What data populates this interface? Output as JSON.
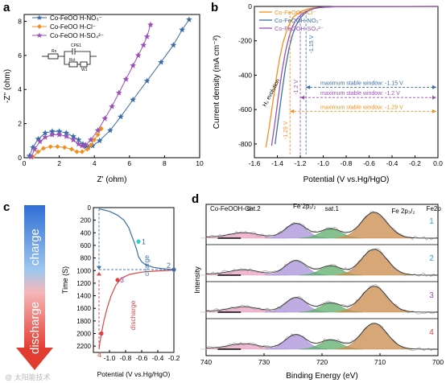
{
  "figure": {
    "watermarks": [
      "@ 太阳能技术"
    ]
  },
  "chart_data": [
    {
      "panel": "a",
      "type": "scatter",
      "xlabel": "Z' (ohm)",
      "ylabel": "-Z'' (ohm)",
      "xlim": [
        0,
        10
      ],
      "ylim": [
        0,
        8.4
      ],
      "xticks": [
        0,
        2,
        4,
        6,
        8,
        10
      ],
      "yticks": [
        0,
        2,
        4,
        6,
        8
      ],
      "legend_position": "top-left",
      "circuit_labels": [
        "Rs",
        "CPE1",
        "Rct",
        "W1"
      ],
      "series": [
        {
          "name": "Co-FeOO H-NO₃⁻",
          "color": "#3a6ea5",
          "marker": "star",
          "x": [
            0.3,
            0.5,
            0.8,
            1.2,
            1.6,
            2.0,
            2.4,
            2.8,
            3.1,
            3.35,
            3.5,
            3.65,
            3.9,
            4.3,
            4.9,
            5.5,
            6.2,
            7.0,
            7.8,
            8.5,
            9.0,
            9.4
          ],
          "y": [
            0.1,
            0.6,
            1.1,
            1.45,
            1.55,
            1.55,
            1.45,
            1.25,
            1.05,
            0.8,
            0.65,
            0.6,
            0.7,
            1.0,
            1.6,
            2.4,
            3.4,
            4.5,
            5.6,
            6.6,
            7.5,
            8.1
          ]
        },
        {
          "name": "Co-FeOO H-Cl⁻",
          "color": "#f0901e",
          "marker": "diamond",
          "x": [
            0.5,
            0.8,
            1.1,
            1.5,
            1.9,
            2.3,
            2.7,
            3.0,
            3.3,
            3.6,
            3.8,
            4.0,
            4.2,
            4.4
          ],
          "y": [
            0.05,
            0.35,
            0.55,
            0.65,
            0.65,
            0.6,
            0.5,
            0.35,
            0.35,
            0.5,
            0.75,
            1.05,
            1.35,
            1.7
          ]
        },
        {
          "name": "Co-FeOO H-SO₄²⁻",
          "color": "#9b4fb8",
          "marker": "star",
          "x": [
            0.4,
            0.6,
            0.9,
            1.2,
            1.6,
            2.0,
            2.4,
            2.8,
            3.1,
            3.3,
            3.5,
            3.8,
            4.2,
            4.6,
            5.0,
            5.4,
            5.8,
            6.2,
            6.5,
            6.8,
            7.0,
            7.2
          ],
          "y": [
            0.05,
            0.5,
            0.95,
            1.2,
            1.35,
            1.35,
            1.25,
            1.05,
            0.8,
            0.7,
            0.75,
            1.05,
            1.6,
            2.3,
            3.0,
            3.8,
            4.6,
            5.4,
            6.0,
            6.6,
            7.1,
            7.8
          ]
        }
      ]
    },
    {
      "panel": "b",
      "type": "line",
      "xlabel": "Potential (V vs.Hg/HgO)",
      "ylabel": "Current density (mA cm⁻²)",
      "xlim": [
        -1.6,
        0.0
      ],
      "ylim": [
        -880,
        0
      ],
      "xticks": [
        -1.6,
        -1.4,
        -1.2,
        -1.0,
        -0.8,
        -0.6,
        -0.4,
        -0.2,
        0.0
      ],
      "yticks": [
        0,
        -200,
        -400,
        -600,
        -800
      ],
      "legend_position": "top-left",
      "series": [
        {
          "name": "Co-FeOOH-Cl⁻",
          "color": "#f0901e",
          "x": [
            -1.5,
            -1.47,
            -1.44,
            -1.41,
            -1.38,
            -1.35,
            -1.32,
            -1.29,
            -1.26,
            -1.22,
            -1.18,
            -1.14,
            -1.1,
            -1.05,
            -1.0,
            -0.9,
            0.0
          ],
          "y": [
            -820,
            -700,
            -560,
            -420,
            -300,
            -210,
            -145,
            -95,
            -62,
            -40,
            -26,
            -16,
            -10,
            -6,
            -4,
            -2,
            0
          ]
        },
        {
          "name": "Co-FeOOH-NO₃⁻",
          "color": "#3a6ea5",
          "x": [
            -1.42,
            -1.39,
            -1.36,
            -1.33,
            -1.3,
            -1.27,
            -1.24,
            -1.21,
            -1.18,
            -1.15,
            -1.12,
            -1.09,
            -1.05,
            -1.0,
            -0.9,
            0.0
          ],
          "y": [
            -800,
            -650,
            -500,
            -360,
            -250,
            -170,
            -115,
            -78,
            -52,
            -34,
            -22,
            -14,
            -8,
            -5,
            -2,
            0
          ]
        },
        {
          "name": "Co-FeOOH-SO₄²⁻",
          "color": "#9b4fb8",
          "x": [
            -1.45,
            -1.42,
            -1.39,
            -1.36,
            -1.33,
            -1.3,
            -1.27,
            -1.24,
            -1.2,
            -1.16,
            -1.12,
            -1.08,
            -1.04,
            -1.0,
            -0.9,
            0.0
          ],
          "y": [
            -810,
            -670,
            -520,
            -380,
            -265,
            -180,
            -120,
            -80,
            -52,
            -32,
            -20,
            -12,
            -7,
            -4,
            -2,
            0
          ]
        }
      ],
      "annotations": {
        "evolution_label": "H₂ evolution",
        "vertical_labels": [
          "-1.29 V",
          "-1.2 V",
          "-1.15 V"
        ],
        "windows": [
          {
            "label": "maximum stable window: -1.15 V",
            "color": "#3a6ea5",
            "y": -470,
            "x_from": -1.15
          },
          {
            "label": "maximum stable window: -1.2 V",
            "color": "#9b4fb8",
            "y": -530,
            "x_from": -1.2
          },
          {
            "label": "maximum stable window: -1.29 V",
            "color": "#f0901e",
            "y": -610,
            "x_from": -1.29
          }
        ]
      }
    },
    {
      "panel": "c",
      "type": "line",
      "xlabel": "Potential (V vs.Hg/HgO)",
      "ylabel": "Time (S)",
      "xlim": [
        -1.2,
        -0.2
      ],
      "ylim": [
        0,
        2300
      ],
      "xticks": [
        -1.0,
        -0.8,
        -0.6,
        -0.4,
        -0.2
      ],
      "yticks": [
        0,
        200,
        400,
        600,
        800,
        1000,
        1200,
        1400,
        1600,
        1800,
        2000,
        2200
      ],
      "arrow_labels": [
        "charge",
        "discharge"
      ],
      "point_labels": [
        "1",
        "2",
        "3",
        "4"
      ],
      "series": [
        {
          "name": "charge",
          "color": "#3a6ea5",
          "x": [
            -1.13,
            -1.0,
            -0.9,
            -0.82,
            -0.76,
            -0.72,
            -0.69,
            -0.66,
            -0.64,
            -0.6,
            -0.55,
            -0.45,
            -0.35,
            -0.25,
            -0.2
          ],
          "y": [
            20,
            60,
            120,
            200,
            320,
            460,
            560,
            680,
            780,
            860,
            910,
            950,
            970,
            980,
            985
          ]
        },
        {
          "name": "discharge",
          "color": "#d94545",
          "x": [
            -0.2,
            -0.3,
            -0.45,
            -0.6,
            -0.75,
            -0.85,
            -0.92,
            -0.98,
            -1.03,
            -1.07,
            -1.1,
            -1.12,
            -1.13
          ],
          "y": [
            990,
            1000,
            1010,
            1025,
            1060,
            1120,
            1230,
            1400,
            1600,
            1800,
            2000,
            2150,
            2250
          ]
        }
      ]
    },
    {
      "panel": "d",
      "type": "line",
      "xlabel": "Binding Energy (eV)",
      "ylabel": "Intensity",
      "xlim": [
        740,
        700
      ],
      "xticks": [
        740,
        730,
        720,
        710,
        700
      ],
      "title_label": "Co-FeOOH-Cl⁻",
      "peak_labels": [
        "sat.2",
        "Fe 2p₁/₂",
        "sat.1",
        "Fe 2p₃/₂",
        "Fe2p"
      ],
      "series": [
        {
          "name": "1",
          "color": "#3aa0d8"
        },
        {
          "name": "2",
          "color": "#3aa0d8"
        },
        {
          "name": "3",
          "color": "#9b4fb8"
        },
        {
          "name": "4",
          "color": "#d94545"
        }
      ],
      "components": [
        {
          "center": 733.5,
          "width": 2.5,
          "height": 0.18,
          "color": "#e8a0c0"
        },
        {
          "center": 724.5,
          "width": 1.8,
          "height": 0.55,
          "color": "#a890d8"
        },
        {
          "center": 718.5,
          "width": 1.8,
          "height": 0.35,
          "color": "#5cae6a"
        },
        {
          "center": 711.0,
          "width": 2.2,
          "height": 1.0,
          "color": "#c98a4a"
        }
      ]
    }
  ],
  "labels": {
    "a": "a",
    "b": "b",
    "c": "c",
    "d": "d",
    "bar_charge": "charge",
    "bar_discharge": "discharge"
  }
}
